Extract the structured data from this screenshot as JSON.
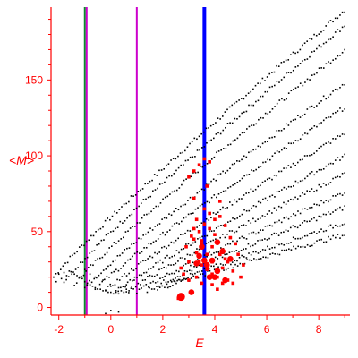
{
  "chart_data": {
    "type": "scatter",
    "title": "",
    "xlabel": "E",
    "ylabel": "<M>",
    "xlim": [
      -2.3,
      9.2
    ],
    "ylim": [
      -5,
      198
    ],
    "xticks": [
      -2,
      0,
      2,
      4,
      6,
      8
    ],
    "yticks": [
      0,
      50,
      100,
      150
    ],
    "axis_color": "#ff0000",
    "grid": false,
    "vertical_lines": [
      {
        "x": -1.0,
        "color": "#0a8a2a"
      },
      {
        "x": -0.93,
        "color": "#cc00cc"
      },
      {
        "x": 1.0,
        "color": "#cc00cc"
      },
      {
        "x": 3.6,
        "color": "#0000ff"
      }
    ],
    "series": [
      {
        "color": "#000000",
        "marker": "dot",
        "bands": [
          {
            "x_start": -2.2,
            "x_end": 9.0,
            "y0": 20,
            "y_end": 196
          },
          {
            "x_start": -1.8,
            "x_end": 9.0,
            "y0": 17,
            "y_end": 186
          },
          {
            "x_start": -1.4,
            "x_end": 9.0,
            "y0": 15,
            "y_end": 170
          },
          {
            "x_start": -1.0,
            "x_end": 9.0,
            "y0": 13,
            "y_end": 148
          },
          {
            "x_start": -0.6,
            "x_end": 9.0,
            "y0": 12,
            "y_end": 132
          },
          {
            "x_start": -0.2,
            "x_end": 9.0,
            "y0": 11,
            "y_end": 115
          },
          {
            "x_start": 0.2,
            "x_end": 9.0,
            "y0": 10,
            "y_end": 100
          },
          {
            "x_start": 0.6,
            "x_end": 9.0,
            "y0": 10,
            "y_end": 88
          },
          {
            "x_start": 1.0,
            "x_end": 9.0,
            "y0": 10,
            "y_end": 76
          },
          {
            "x_start": 1.4,
            "x_end": 9.0,
            "y0": 11,
            "y_end": 66
          },
          {
            "x_start": 1.8,
            "x_end": 9.0,
            "y0": 12,
            "y_end": 56
          },
          {
            "x_start": 2.2,
            "x_end": 9.0,
            "y0": 14,
            "y_end": 48
          }
        ],
        "points": [
          [
            -2.2,
            20
          ],
          [
            -2.0,
            22
          ],
          [
            -1.8,
            23
          ],
          [
            -1.6,
            24
          ],
          [
            -1.4,
            22
          ],
          [
            -1.2,
            20
          ],
          [
            -1.0,
            17
          ],
          [
            -0.8,
            15
          ],
          [
            -0.6,
            13
          ],
          [
            -0.4,
            12
          ],
          [
            -0.2,
            11
          ],
          [
            0.0,
            10
          ],
          [
            0.2,
            10
          ],
          [
            0.4,
            11
          ],
          [
            0.6,
            12
          ],
          [
            0.8,
            14
          ],
          [
            -2.1,
            17
          ],
          [
            -1.9,
            19
          ],
          [
            -1.7,
            21
          ],
          [
            -1.5,
            22
          ],
          [
            -1.3,
            21
          ],
          [
            -1.1,
            19
          ],
          [
            -0.9,
            16
          ],
          [
            -0.7,
            14
          ],
          [
            -0.5,
            12
          ],
          [
            -0.3,
            11
          ],
          [
            -0.1,
            10
          ],
          [
            0.1,
            9
          ],
          [
            0.3,
            9
          ],
          [
            0.5,
            10
          ],
          [
            0.7,
            11
          ],
          [
            -1.0,
            25
          ],
          [
            -0.8,
            22
          ],
          [
            -0.6,
            20
          ],
          [
            -0.3,
            18
          ],
          [
            0.0,
            14
          ],
          [
            0.3,
            13
          ],
          [
            0.6,
            15
          ],
          [
            0.9,
            18
          ],
          [
            0.0,
            -2
          ],
          [
            0.3,
            -3
          ],
          [
            -0.2,
            -4
          ]
        ]
      },
      {
        "color": "#ff0000",
        "marker": "square",
        "points": [
          [
            2.6,
            6
          ],
          [
            3.1,
            10
          ],
          [
            3.3,
            20
          ],
          [
            3.5,
            28
          ],
          [
            3.7,
            35
          ],
          [
            3.9,
            40
          ],
          [
            4.1,
            43
          ],
          [
            4.3,
            38
          ],
          [
            4.5,
            30
          ],
          [
            4.7,
            24
          ],
          [
            4.9,
            35
          ],
          [
            5.1,
            28
          ],
          [
            3.2,
            45
          ],
          [
            3.4,
            50
          ],
          [
            3.6,
            55
          ],
          [
            3.8,
            52
          ],
          [
            4.0,
            48
          ],
          [
            4.2,
            60
          ],
          [
            4.4,
            54
          ],
          [
            4.6,
            46
          ],
          [
            3.0,
            30
          ],
          [
            2.8,
            22
          ],
          [
            3.0,
            18
          ],
          [
            3.3,
            36
          ],
          [
            3.5,
            42
          ],
          [
            3.7,
            25
          ],
          [
            3.9,
            22
          ],
          [
            4.1,
            20
          ],
          [
            4.3,
            26
          ],
          [
            4.5,
            18
          ],
          [
            4.8,
            42
          ],
          [
            5.0,
            20
          ],
          [
            3.2,
            52
          ],
          [
            3.6,
            65
          ],
          [
            3.8,
            62
          ],
          [
            4.0,
            58
          ],
          [
            4.2,
            35
          ],
          [
            4.4,
            32
          ],
          [
            3.4,
            30
          ],
          [
            2.9,
            40
          ],
          [
            2.7,
            26
          ],
          [
            3.1,
            47
          ],
          [
            3.5,
            16
          ],
          [
            3.9,
            30
          ],
          [
            4.3,
            16
          ],
          [
            4.7,
            16
          ],
          [
            3.2,
            90
          ],
          [
            3.4,
            94
          ],
          [
            3.6,
            98
          ],
          [
            3.8,
            96
          ],
          [
            4.2,
            70
          ],
          [
            3.7,
            80
          ],
          [
            3.2,
            72
          ],
          [
            3.0,
            86
          ],
          [
            3.5,
            44
          ],
          [
            3.3,
            58
          ],
          [
            3.9,
            15
          ],
          [
            4.1,
            12
          ]
        ],
        "large_points": [
          [
            2.7,
            7
          ],
          [
            3.1,
            10
          ],
          [
            3.3,
            29
          ],
          [
            3.6,
            31
          ],
          [
            3.9,
            31
          ],
          [
            4.1,
            24
          ],
          [
            3.4,
            34
          ],
          [
            3.7,
            28
          ],
          [
            4.3,
            37
          ],
          [
            3.8,
            20
          ],
          [
            4.6,
            32
          ],
          [
            4.1,
            43
          ],
          [
            3.5,
            40
          ],
          [
            4.0,
            20
          ],
          [
            4.4,
            18
          ]
        ]
      }
    ]
  }
}
